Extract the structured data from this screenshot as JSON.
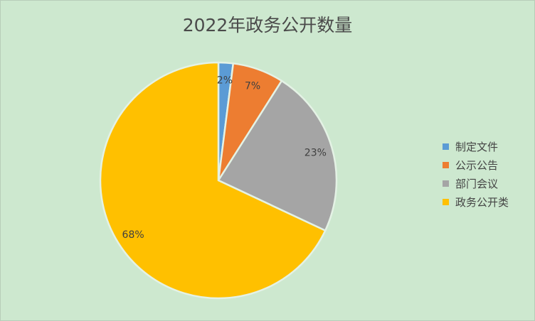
{
  "chart_data": {
    "type": "pie",
    "title": "2022年政务公开数量",
    "categories": [
      "制定文件",
      "公示公告",
      "部门会议",
      "政务公开类"
    ],
    "values": [
      2,
      7,
      23,
      68
    ],
    "labels": [
      "2%",
      "7%",
      "23%",
      "68%"
    ],
    "colors": [
      "#5b9bd5",
      "#ed7d31",
      "#a5a5a5",
      "#ffc000"
    ],
    "legend_position": "right",
    "start": "top, clockwise"
  },
  "background": "#cde8cf"
}
